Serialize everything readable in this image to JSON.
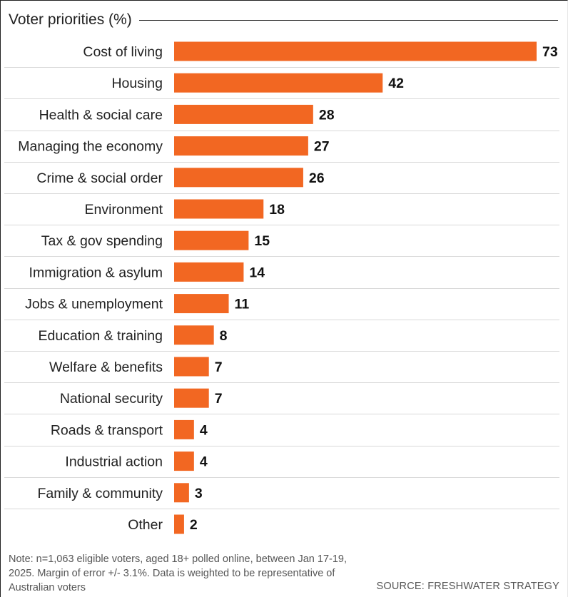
{
  "chart_data": {
    "type": "bar",
    "orientation": "horizontal",
    "title": "Voter priorities (%)",
    "categories": [
      "Cost of living",
      "Housing",
      "Health & social care",
      "Managing the economy",
      "Crime & social order",
      "Environment",
      "Tax & gov spending",
      "Immigration & asylum",
      "Jobs & unemployment",
      "Education & training",
      "Welfare & benefits",
      "National security",
      "Roads & transport",
      "Industrial action",
      "Family & community",
      "Other"
    ],
    "values": [
      73,
      42,
      28,
      27,
      26,
      18,
      15,
      14,
      11,
      8,
      7,
      7,
      4,
      4,
      3,
      2
    ],
    "xlim": [
      0,
      73
    ],
    "bar_color": "#f26722",
    "grid": false
  },
  "footer": {
    "note": "Note: n=1,063 eligible voters, aged 18+ polled online, between Jan 17-19, 2025. Margin of error +/- 3.1%. Data is weighted to be representative of Australian voters",
    "source": "SOURCE: FRESHWATER STRATEGY"
  }
}
